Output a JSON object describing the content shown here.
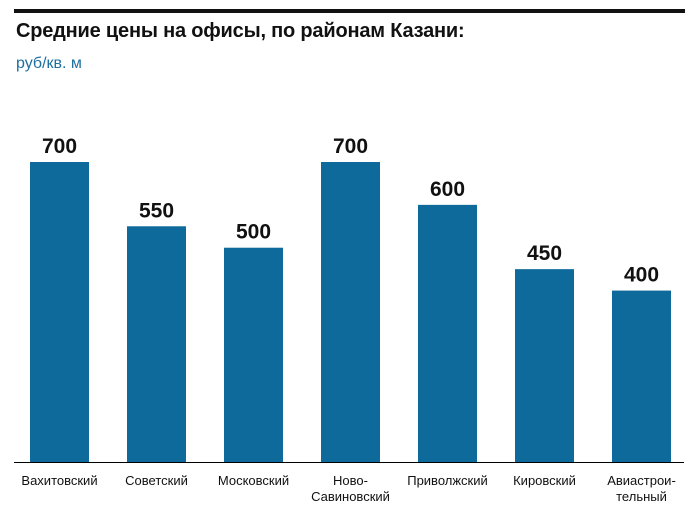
{
  "title": "Средние цены на офисы, по районам Казани:",
  "subtitle": "руб/кв. м",
  "colors": {
    "bar": "#0e6a9b",
    "subtitle": "#1f6f9f",
    "text": "#111111",
    "axis": "#000000"
  },
  "chart_data": {
    "type": "bar",
    "title": "Средние цены на офисы, по районам Казани:",
    "ylabel": "руб/кв. м",
    "xlabel": "",
    "ylim": [
      0,
      700
    ],
    "grid": false,
    "legend": "none",
    "categories": [
      [
        "Вахитовский"
      ],
      [
        "Советский"
      ],
      [
        "Московский"
      ],
      [
        "Ново-",
        "Савиновский"
      ],
      [
        "Приволжский"
      ],
      [
        "Кировский"
      ],
      [
        "Авиастрои-",
        "тельный"
      ]
    ],
    "values": [
      700,
      550,
      500,
      700,
      600,
      450,
      400
    ],
    "value_labels": [
      "700",
      "550",
      "500",
      "700",
      "600",
      "450",
      "400"
    ]
  }
}
